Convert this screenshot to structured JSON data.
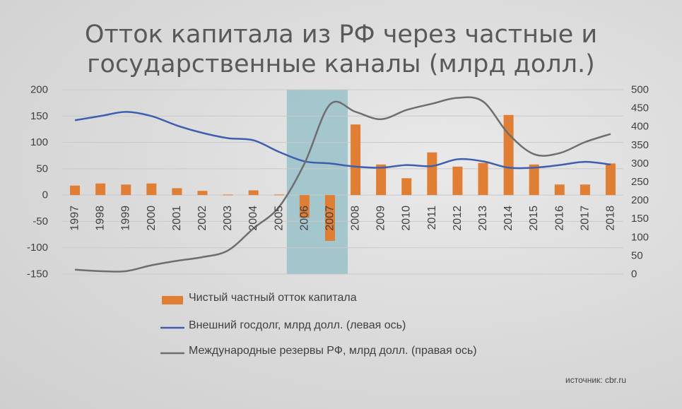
{
  "title_line1": "Отток капитала из РФ через частные и",
  "title_line2": "государственные каналы (млрд долл.)",
  "source": "источник: cbr.ru",
  "chart_data": {
    "type": "bar+line",
    "categories": [
      "1997",
      "1998",
      "1999",
      "2000",
      "2001",
      "2002",
      "2003",
      "2004",
      "2005",
      "2006",
      "2007",
      "2008",
      "2009",
      "2010",
      "2011",
      "2012",
      "2013",
      "2014",
      "2015",
      "2016",
      "2017",
      "2018"
    ],
    "left_axis": {
      "ticks": [
        "200",
        "150",
        "100",
        "50",
        "0",
        "-50",
        "-100",
        "-150"
      ],
      "range": [
        -150,
        200
      ]
    },
    "right_axis": {
      "ticks": [
        "500",
        "450",
        "400",
        "350",
        "300",
        "250",
        "200",
        "150",
        "100",
        "50",
        "0"
      ],
      "range": [
        0,
        500
      ]
    },
    "highlight_years": [
      "2006",
      "2007"
    ],
    "legend_position": "bottom",
    "series": [
      {
        "name": "Чистый частный отток капитала",
        "kind": "bar",
        "axis": "left",
        "color": "#e07f34",
        "values": [
          18,
          22,
          20,
          22,
          13,
          8,
          1,
          9,
          1,
          -43,
          -87,
          134,
          58,
          32,
          81,
          54,
          61,
          152,
          58,
          20,
          20,
          60
        ]
      },
      {
        "name": "Внешний госдолг, млрд долл. (левая ось)",
        "kind": "line",
        "axis": "left",
        "color": "#3f5eb0",
        "values": [
          142,
          150,
          158,
          150,
          132,
          118,
          108,
          104,
          82,
          64,
          60,
          54,
          52,
          57,
          55,
          68,
          64,
          52,
          52,
          57,
          63,
          58
        ]
      },
      {
        "name": "Международные резервы РФ, млрд долл. (правая ось)",
        "kind": "line",
        "axis": "right",
        "color": "#6e6e6e",
        "values": [
          12,
          8,
          8,
          24,
          36,
          46,
          64,
          124,
          182,
          300,
          460,
          440,
          420,
          445,
          462,
          478,
          468,
          380,
          325,
          328,
          358,
          380
        ]
      }
    ]
  }
}
